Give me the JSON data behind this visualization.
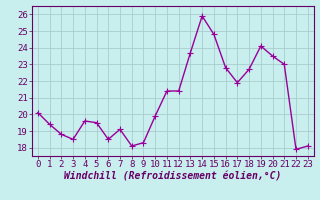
{
  "x": [
    0,
    1,
    2,
    3,
    4,
    5,
    6,
    7,
    8,
    9,
    10,
    11,
    12,
    13,
    14,
    15,
    16,
    17,
    18,
    19,
    20,
    21,
    22,
    23
  ],
  "y": [
    20.1,
    19.4,
    18.8,
    18.5,
    19.6,
    19.5,
    18.5,
    19.1,
    18.1,
    18.3,
    19.9,
    21.4,
    21.4,
    23.7,
    25.9,
    24.8,
    22.8,
    21.9,
    22.7,
    24.1,
    23.5,
    23.0,
    17.9,
    18.1
  ],
  "line_color": "#990099",
  "marker_color": "#990099",
  "bg_color": "#c8eeee",
  "grid_color": "#aacccc",
  "xlabel": "Windchill (Refroidissement éolien,°C)",
  "ylim": [
    17.5,
    26.5
  ],
  "xlim": [
    -0.5,
    23.5
  ],
  "yticks": [
    18,
    19,
    20,
    21,
    22,
    23,
    24,
    25,
    26
  ],
  "xticks": [
    0,
    1,
    2,
    3,
    4,
    5,
    6,
    7,
    8,
    9,
    10,
    11,
    12,
    13,
    14,
    15,
    16,
    17,
    18,
    19,
    20,
    21,
    22,
    23
  ],
  "xlabel_fontsize": 7,
  "tick_fontsize": 6.5,
  "line_width": 1.0,
  "marker_size": 2.5
}
